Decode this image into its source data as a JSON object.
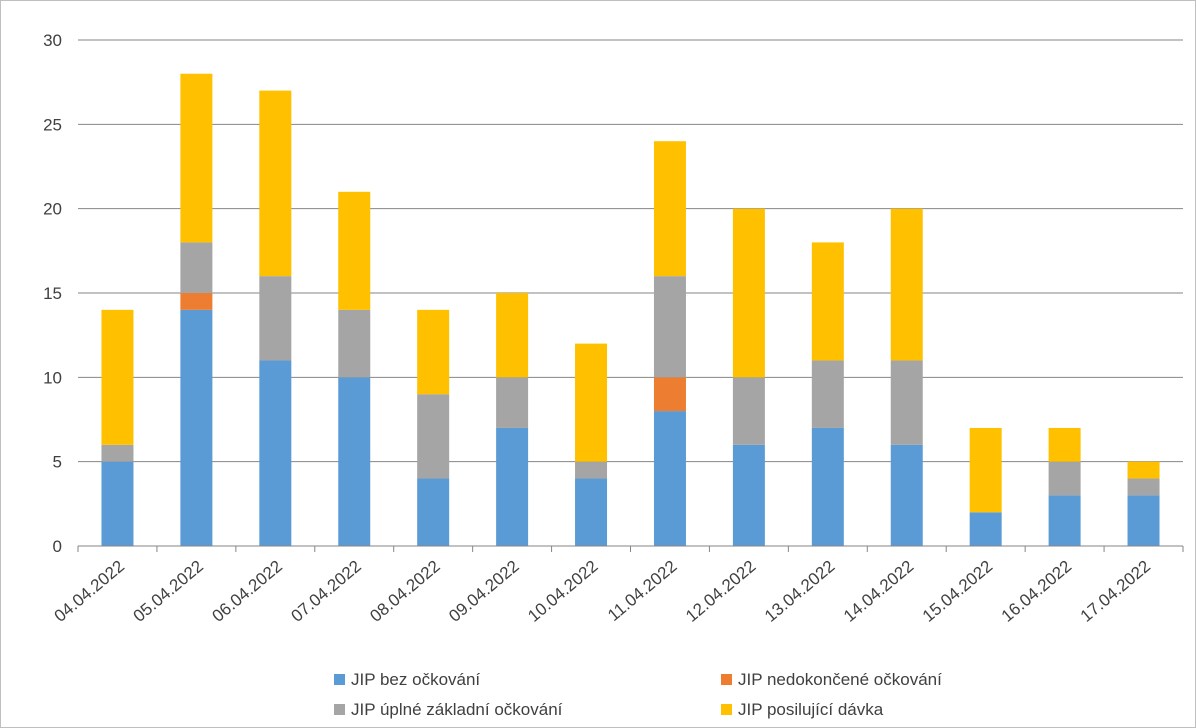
{
  "chart_data": {
    "type": "bar",
    "stacked": true,
    "categories": [
      "04.04.2022",
      "05.04.2022",
      "06.04.2022",
      "07.04.2022",
      "08.04.2022",
      "09.04.2022",
      "10.04.2022",
      "11.04.2022",
      "12.04.2022",
      "13.04.2022",
      "14.04.2022",
      "15.04.2022",
      "16.04.2022",
      "17.04.2022"
    ],
    "series": [
      {
        "name": "JIP bez očkování",
        "color": "#5b9bd5",
        "values": [
          5,
          14,
          11,
          10,
          4,
          7,
          4,
          8,
          6,
          7,
          6,
          2,
          3,
          3
        ]
      },
      {
        "name": "JIP nedokončené očkování",
        "color": "#ed7d31",
        "values": [
          0,
          1,
          0,
          0,
          0,
          0,
          0,
          2,
          0,
          0,
          0,
          0,
          0,
          0
        ]
      },
      {
        "name": "JIP úplné základní očkování",
        "color": "#a5a5a5",
        "values": [
          1,
          3,
          5,
          4,
          5,
          3,
          1,
          6,
          4,
          4,
          5,
          0,
          2,
          1
        ]
      },
      {
        "name": "JIP posilující dávka",
        "color": "#ffc000",
        "values": [
          8,
          10,
          11,
          7,
          5,
          5,
          7,
          8,
          10,
          7,
          9,
          5,
          2,
          1
        ]
      }
    ],
    "y_ticks": [
      "0",
      "5",
      "10",
      "15",
      "20",
      "25",
      "30"
    ],
    "ylim": [
      0,
      30
    ],
    "grid": true,
    "legend_position": "bottom",
    "title": "",
    "xlabel": "",
    "ylabel": ""
  }
}
